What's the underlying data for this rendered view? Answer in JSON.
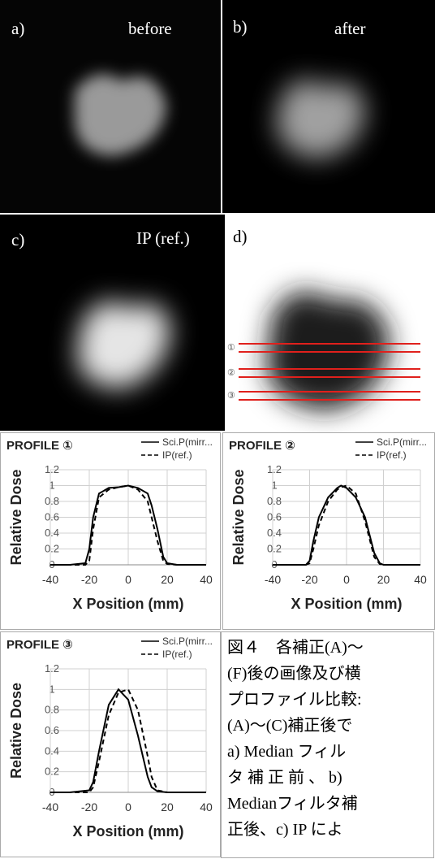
{
  "panels": [
    {
      "label": "a)",
      "caption": "before"
    },
    {
      "label": "b)",
      "caption": "after"
    },
    {
      "label": "c)",
      "caption": "IP (ref.)"
    },
    {
      "label": "d)",
      "markers": [
        "①",
        "②",
        "③"
      ]
    }
  ],
  "chart_data": [
    {
      "type": "line",
      "title": "PROFILE ①",
      "xlabel": "X Position (mm)",
      "ylabel": "Relative Dose",
      "xlim": [
        -40,
        40
      ],
      "ylim": [
        0,
        1.2
      ],
      "xticks": [
        -40,
        -20,
        0,
        20,
        40
      ],
      "yticks": [
        0,
        0.2,
        0.4,
        0.6,
        0.8,
        1,
        1.2
      ],
      "grid": true,
      "x": [
        -40,
        -30,
        -22,
        -20,
        -18,
        -15,
        -10,
        -5,
        0,
        5,
        10,
        12,
        15,
        18,
        20,
        25,
        30,
        40
      ],
      "series": [
        {
          "name": "Sci.P(mirr...",
          "color": "#000000",
          "line_style": "solid",
          "values": [
            0,
            0,
            0.02,
            0.2,
            0.6,
            0.9,
            0.97,
            0.98,
            1.0,
            0.97,
            0.9,
            0.75,
            0.45,
            0.1,
            0.02,
            0,
            0,
            0
          ]
        },
        {
          "name": "IP(ref.)",
          "color": "#000000",
          "line_style": "dashed",
          "values": [
            0,
            0,
            0,
            0.05,
            0.45,
            0.85,
            0.95,
            0.98,
            1.0,
            0.95,
            0.8,
            0.6,
            0.3,
            0.05,
            0.01,
            0,
            0,
            0
          ]
        }
      ]
    },
    {
      "type": "line",
      "title": "PROFILE ②",
      "xlabel": "X Position (mm)",
      "ylabel": "Relative Dose",
      "xlim": [
        -40,
        40
      ],
      "ylim": [
        0,
        1.2
      ],
      "xticks": [
        -40,
        -20,
        0,
        20,
        40
      ],
      "yticks": [
        0,
        0.2,
        0.4,
        0.6,
        0.8,
        1,
        1.2
      ],
      "grid": true,
      "x": [
        -40,
        -30,
        -22,
        -20,
        -18,
        -15,
        -10,
        -5,
        -3,
        0,
        5,
        10,
        15,
        18,
        20,
        30,
        40
      ],
      "series": [
        {
          "name": "Sci.P(mirr...",
          "color": "#000000",
          "line_style": "solid",
          "values": [
            0,
            0,
            0,
            0.05,
            0.3,
            0.6,
            0.85,
            0.97,
            1.0,
            0.97,
            0.85,
            0.6,
            0.15,
            0.02,
            0,
            0,
            0
          ]
        },
        {
          "name": "IP(ref.)",
          "color": "#000000",
          "line_style": "dashed",
          "values": [
            0,
            0,
            0,
            0.02,
            0.2,
            0.5,
            0.8,
            0.95,
            0.98,
            1.0,
            0.9,
            0.55,
            0.1,
            0.01,
            0,
            0,
            0
          ]
        }
      ]
    },
    {
      "type": "line",
      "title": "PROFILE ③",
      "xlabel": "X Position (mm)",
      "ylabel": "Relative Dose",
      "xlim": [
        -40,
        40
      ],
      "ylim": [
        0,
        1.2
      ],
      "xticks": [
        -40,
        -20,
        0,
        20,
        40
      ],
      "yticks": [
        0,
        0.2,
        0.4,
        0.6,
        0.8,
        1,
        1.2
      ],
      "grid": true,
      "x": [
        -40,
        -30,
        -20,
        -18,
        -15,
        -10,
        -5,
        0,
        5,
        10,
        12,
        15,
        20,
        30,
        40
      ],
      "series": [
        {
          "name": "Sci.P(mirr...",
          "color": "#000000",
          "line_style": "solid",
          "values": [
            0,
            0,
            0.02,
            0.1,
            0.4,
            0.85,
            1.0,
            0.9,
            0.55,
            0.15,
            0.05,
            0.01,
            0,
            0,
            0
          ]
        },
        {
          "name": "IP(ref.)",
          "color": "#000000",
          "line_style": "dashed",
          "values": [
            0,
            0,
            0,
            0.05,
            0.3,
            0.75,
            0.97,
            1.0,
            0.8,
            0.35,
            0.15,
            0.02,
            0,
            0,
            0
          ]
        }
      ]
    }
  ],
  "caption": {
    "lines": [
      "図４　各補正(A)～",
      "(F)後の画像及び横",
      "プロファイル比較:",
      "(A)～(C)補正後で",
      "a) Median フィル",
      "タ 補 正 前 、 b)",
      "Medianフィルタ補",
      "正後、c) IP によ"
    ]
  }
}
